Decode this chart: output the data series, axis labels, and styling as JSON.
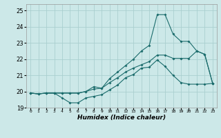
{
  "xlabel": "Humidex (Indice chaleur)",
  "background_color": "#cce8e8",
  "grid_color": "#aacfcf",
  "line_color": "#1a6b6b",
  "xlim": [
    -0.5,
    23.5
  ],
  "ylim": [
    19.0,
    25.4
  ],
  "yticks": [
    19,
    20,
    21,
    22,
    23,
    24,
    25
  ],
  "xtick_labels": [
    "0",
    "1",
    "2",
    "3",
    "4",
    "5",
    "6",
    "7",
    "8",
    "9",
    "10",
    "11",
    "12",
    "13",
    "14",
    "15",
    "16",
    "17",
    "18",
    "19",
    "20",
    "21",
    "22",
    "23"
  ],
  "line1_x": [
    0,
    1,
    2,
    3,
    4,
    5,
    6,
    7,
    8,
    9,
    10,
    11,
    12,
    13,
    14,
    15,
    16,
    17,
    18,
    19,
    20,
    21,
    22,
    23
  ],
  "line1_y": [
    19.9,
    19.85,
    19.9,
    19.9,
    19.6,
    19.3,
    19.3,
    19.6,
    19.7,
    19.8,
    20.1,
    20.4,
    20.85,
    21.05,
    21.45,
    21.5,
    21.95,
    21.55,
    21.0,
    20.55,
    20.45,
    20.45,
    20.45,
    20.5
  ],
  "line2_x": [
    0,
    1,
    2,
    3,
    4,
    5,
    6,
    7,
    8,
    9,
    10,
    11,
    12,
    13,
    14,
    15,
    16,
    17,
    18,
    19,
    20,
    21,
    22,
    23
  ],
  "line2_y": [
    19.9,
    19.85,
    19.9,
    19.9,
    19.9,
    19.9,
    19.9,
    20.0,
    20.15,
    20.2,
    20.55,
    20.85,
    21.2,
    21.45,
    21.65,
    21.85,
    22.25,
    22.25,
    22.05,
    22.05,
    22.05,
    22.5,
    22.3,
    20.5
  ],
  "line3_x": [
    0,
    1,
    2,
    3,
    4,
    5,
    6,
    7,
    8,
    9,
    10,
    11,
    12,
    13,
    14,
    15,
    16,
    17,
    18,
    19,
    20,
    21,
    22,
    23
  ],
  "line3_y": [
    19.9,
    19.85,
    19.9,
    19.9,
    19.9,
    19.9,
    19.9,
    20.0,
    20.3,
    20.2,
    20.8,
    21.2,
    21.6,
    22.0,
    22.5,
    22.85,
    24.75,
    24.75,
    23.55,
    23.1,
    23.1,
    22.5,
    22.3,
    20.5
  ]
}
